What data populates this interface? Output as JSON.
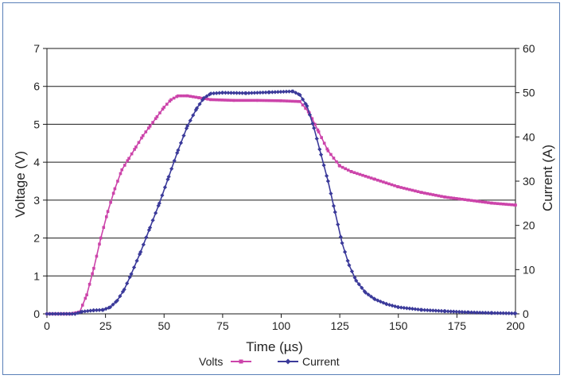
{
  "colors": {
    "volts": "#cc44aa",
    "current": "#3b3a9a",
    "grid": "#1a1a1a",
    "frame": "#5a7fb8"
  },
  "chart_data": {
    "type": "line",
    "title": "",
    "xlabel": "Time (µs)",
    "ylabel_left": "Voltage (V)",
    "ylabel_right": "Current (A)",
    "xlim": [
      0,
      200
    ],
    "ylim_left": [
      0,
      7
    ],
    "ylim_right": [
      0,
      60
    ],
    "x_ticks": [
      "0",
      "25",
      "50",
      "75",
      "100",
      "125",
      "150",
      "175",
      "200"
    ],
    "y_ticks_left": [
      "0",
      "1",
      "2",
      "3",
      "4",
      "5",
      "6",
      "7"
    ],
    "y_ticks_right": [
      "0",
      "10",
      "20",
      "30",
      "40",
      "50",
      "60"
    ],
    "grid": "horizontal",
    "legend_position": "bottom",
    "series": [
      {
        "name": "Volts",
        "axis": "left",
        "color": "#cc44aa",
        "points": [
          [
            0,
            0
          ],
          [
            10,
            0
          ],
          [
            14,
            0.05
          ],
          [
            17,
            0.5
          ],
          [
            20,
            1.2
          ],
          [
            23,
            2.0
          ],
          [
            26,
            2.7
          ],
          [
            29,
            3.3
          ],
          [
            32,
            3.8
          ],
          [
            35,
            4.1
          ],
          [
            38,
            4.4
          ],
          [
            41,
            4.7
          ],
          [
            44,
            4.95
          ],
          [
            47,
            5.2
          ],
          [
            50,
            5.45
          ],
          [
            53,
            5.65
          ],
          [
            56,
            5.75
          ],
          [
            60,
            5.75
          ],
          [
            65,
            5.7
          ],
          [
            70,
            5.65
          ],
          [
            80,
            5.63
          ],
          [
            90,
            5.63
          ],
          [
            100,
            5.62
          ],
          [
            108,
            5.6
          ],
          [
            112,
            5.3
          ],
          [
            116,
            4.8
          ],
          [
            120,
            4.3
          ],
          [
            125,
            3.9
          ],
          [
            130,
            3.75
          ],
          [
            140,
            3.55
          ],
          [
            150,
            3.35
          ],
          [
            160,
            3.2
          ],
          [
            170,
            3.08
          ],
          [
            180,
            3.0
          ],
          [
            190,
            2.92
          ],
          [
            200,
            2.87
          ]
        ]
      },
      {
        "name": "Current",
        "axis": "right",
        "color": "#3b3a9a",
        "points": [
          [
            0,
            0
          ],
          [
            12,
            0
          ],
          [
            15,
            0.5
          ],
          [
            20,
            0.8
          ],
          [
            24,
            0.9
          ],
          [
            27,
            1.5
          ],
          [
            30,
            3.0
          ],
          [
            33,
            5.5
          ],
          [
            36,
            9.0
          ],
          [
            40,
            14.0
          ],
          [
            44,
            19.5
          ],
          [
            48,
            25.0
          ],
          [
            52,
            31.0
          ],
          [
            56,
            37.0
          ],
          [
            60,
            42.5
          ],
          [
            64,
            46.5
          ],
          [
            67,
            48.8
          ],
          [
            70,
            49.8
          ],
          [
            75,
            50.0
          ],
          [
            85,
            49.9
          ],
          [
            95,
            50.1
          ],
          [
            105,
            50.3
          ],
          [
            108,
            49.5
          ],
          [
            111,
            47.0
          ],
          [
            114,
            42.0
          ],
          [
            117,
            36.0
          ],
          [
            120,
            30.0
          ],
          [
            123,
            23.0
          ],
          [
            126,
            16.0
          ],
          [
            129,
            11.0
          ],
          [
            132,
            7.5
          ],
          [
            136,
            4.8
          ],
          [
            140,
            3.3
          ],
          [
            145,
            2.2
          ],
          [
            150,
            1.5
          ],
          [
            160,
            0.9
          ],
          [
            170,
            0.6
          ],
          [
            180,
            0.35
          ],
          [
            190,
            0.2
          ],
          [
            200,
            0.1
          ]
        ]
      }
    ]
  }
}
